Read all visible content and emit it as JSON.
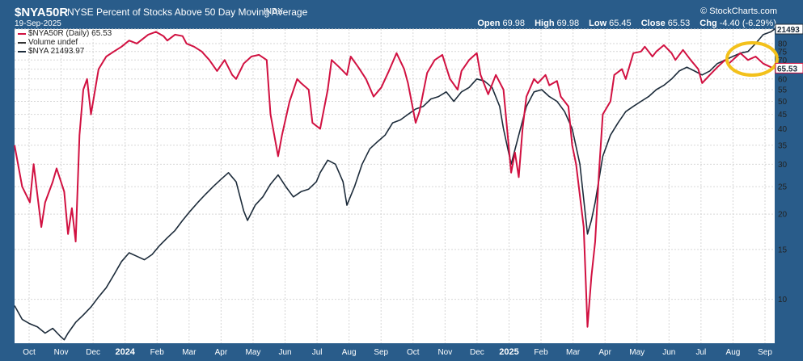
{
  "header": {
    "symbol": "$NYA50R",
    "title": "NYSE Percent of Stocks Above 50 Day Moving Average",
    "exchange": "INDX",
    "date": "19-Sep-2025",
    "brand": "© StockCharts.com",
    "quote": {
      "open_label": "Open",
      "open": "69.98",
      "high_label": "High",
      "high": "69.98",
      "low_label": "Low",
      "low": "65.45",
      "close_label": "Close",
      "close": "65.53",
      "chg_label": "Chg",
      "chg": "-4.40 (-6.29%)"
    }
  },
  "legend": {
    "nya50r": "$NYA50R (Daily) 65.53",
    "volume": "Volume undef",
    "nya": "$NYA 21493.97"
  },
  "colors": {
    "nya50r": "#d11141",
    "nya": "#1c2b3a",
    "frame": "#295c8a",
    "highlight": "#f3c11b"
  },
  "chart_data": {
    "type": "line",
    "scale": "log",
    "ylim": [
      7,
      90
    ],
    "y_ticks": [
      "10",
      "15",
      "20",
      "25",
      "30",
      "35",
      "40",
      "45",
      "50",
      "55",
      "60",
      "65",
      "70",
      "75",
      "80",
      "90"
    ],
    "x_ticks": [
      "Oct",
      "Nov",
      "Dec",
      "2024",
      "Feb",
      "Mar",
      "Apr",
      "May",
      "Jun",
      "Jul",
      "Aug",
      "Sep",
      "Oct",
      "Nov",
      "Dec",
      "2025",
      "Feb",
      "Mar",
      "Apr",
      "May",
      "Jun",
      "Jul",
      "Aug",
      "Sep"
    ],
    "last_value_labels": {
      "nya": "21493",
      "nya50r": "65.53"
    },
    "series": [
      {
        "name": "$NYA50R (Daily)",
        "color": "#d11141",
        "values": [
          [
            0,
            35
          ],
          [
            2,
            25
          ],
          [
            4,
            22
          ],
          [
            5,
            30
          ],
          [
            7,
            18
          ],
          [
            8,
            22
          ],
          [
            10,
            26
          ],
          [
            11,
            29
          ],
          [
            13,
            24
          ],
          [
            14,
            17
          ],
          [
            15,
            21
          ],
          [
            16,
            16
          ],
          [
            17,
            38
          ],
          [
            18,
            55
          ],
          [
            19,
            60
          ],
          [
            20,
            45
          ],
          [
            22,
            65
          ],
          [
            24,
            72
          ],
          [
            26,
            75
          ],
          [
            28,
            78
          ],
          [
            30,
            82
          ],
          [
            32,
            80
          ],
          [
            35,
            86
          ],
          [
            37,
            88
          ],
          [
            39,
            85
          ],
          [
            40,
            82
          ],
          [
            42,
            86
          ],
          [
            44,
            85
          ],
          [
            45,
            80
          ],
          [
            47,
            78
          ],
          [
            49,
            75
          ],
          [
            51,
            70
          ],
          [
            53,
            64
          ],
          [
            55,
            70
          ],
          [
            57,
            62
          ],
          [
            58,
            60
          ],
          [
            60,
            68
          ],
          [
            62,
            72
          ],
          [
            64,
            73
          ],
          [
            66,
            70
          ],
          [
            67,
            45
          ],
          [
            69,
            32
          ],
          [
            70,
            38
          ],
          [
            72,
            50
          ],
          [
            74,
            60
          ],
          [
            75,
            58
          ],
          [
            77,
            55
          ],
          [
            78,
            42
          ],
          [
            80,
            40
          ],
          [
            82,
            55
          ],
          [
            83,
            70
          ],
          [
            85,
            66
          ],
          [
            87,
            62
          ],
          [
            88,
            72
          ],
          [
            90,
            66
          ],
          [
            92,
            60
          ],
          [
            94,
            52
          ],
          [
            96,
            56
          ],
          [
            98,
            64
          ],
          [
            100,
            74
          ],
          [
            102,
            65
          ],
          [
            103,
            58
          ],
          [
            105,
            42
          ],
          [
            106,
            46
          ],
          [
            108,
            63
          ],
          [
            110,
            70
          ],
          [
            112,
            73
          ],
          [
            113,
            66
          ],
          [
            114,
            60
          ],
          [
            116,
            55
          ],
          [
            117,
            64
          ],
          [
            119,
            70
          ],
          [
            121,
            74
          ],
          [
            122,
            62
          ],
          [
            124,
            53
          ],
          [
            126,
            62
          ],
          [
            128,
            55
          ],
          [
            130,
            28
          ],
          [
            131,
            33
          ],
          [
            132,
            27
          ],
          [
            133,
            40
          ],
          [
            134,
            52
          ],
          [
            136,
            60
          ],
          [
            137,
            58
          ],
          [
            139,
            62
          ],
          [
            140,
            57
          ],
          [
            142,
            59
          ],
          [
            143,
            52
          ],
          [
            145,
            48
          ],
          [
            146,
            35
          ],
          [
            147,
            30
          ],
          [
            149,
            18
          ],
          [
            150,
            8
          ],
          [
            151,
            12
          ],
          [
            152,
            16
          ],
          [
            153,
            28
          ],
          [
            154,
            45
          ],
          [
            156,
            50
          ],
          [
            157,
            62
          ],
          [
            159,
            65
          ],
          [
            160,
            60
          ],
          [
            162,
            74
          ],
          [
            164,
            75
          ],
          [
            165,
            78
          ],
          [
            167,
            72
          ],
          [
            168,
            75
          ],
          [
            170,
            79
          ],
          [
            172,
            74
          ],
          [
            173,
            70
          ],
          [
            175,
            76
          ],
          [
            177,
            70
          ],
          [
            179,
            65
          ],
          [
            180,
            58
          ],
          [
            182,
            62
          ],
          [
            184,
            66
          ],
          [
            186,
            70
          ],
          [
            187,
            68
          ],
          [
            189,
            72
          ],
          [
            190,
            74
          ],
          [
            192,
            70
          ],
          [
            194,
            72
          ],
          [
            196,
            68
          ],
          [
            198,
            66
          ],
          [
            199,
            65.5
          ]
        ]
      },
      {
        "name": "$NYA",
        "color": "#1c2b3a",
        "values": [
          [
            0,
            9.5
          ],
          [
            2,
            8.5
          ],
          [
            4,
            8.2
          ],
          [
            6,
            8.0
          ],
          [
            8,
            7.6
          ],
          [
            10,
            7.9
          ],
          [
            12,
            7.4
          ],
          [
            13,
            7.2
          ],
          [
            14,
            7.6
          ],
          [
            16,
            8.3
          ],
          [
            18,
            8.8
          ],
          [
            20,
            9.4
          ],
          [
            22,
            10.2
          ],
          [
            24,
            11.0
          ],
          [
            26,
            12.2
          ],
          [
            28,
            13.6
          ],
          [
            30,
            14.6
          ],
          [
            32,
            14.2
          ],
          [
            34,
            13.8
          ],
          [
            36,
            14.4
          ],
          [
            38,
            15.5
          ],
          [
            40,
            16.5
          ],
          [
            42,
            17.5
          ],
          [
            44,
            19.0
          ],
          [
            46,
            20.5
          ],
          [
            48,
            22.0
          ],
          [
            50,
            23.5
          ],
          [
            52,
            25.0
          ],
          [
            54,
            26.5
          ],
          [
            56,
            28.0
          ],
          [
            58,
            26.0
          ],
          [
            60,
            20.5
          ],
          [
            61,
            19.0
          ],
          [
            63,
            21.5
          ],
          [
            65,
            23.0
          ],
          [
            67,
            25.5
          ],
          [
            69,
            27.5
          ],
          [
            71,
            25.0
          ],
          [
            73,
            23.0
          ],
          [
            75,
            24.0
          ],
          [
            77,
            24.5
          ],
          [
            79,
            26.0
          ],
          [
            80,
            28.0
          ],
          [
            82,
            31.0
          ],
          [
            84,
            30.0
          ],
          [
            86,
            26.0
          ],
          [
            87,
            21.5
          ],
          [
            89,
            25.0
          ],
          [
            91,
            30.0
          ],
          [
            93,
            34.0
          ],
          [
            95,
            36.0
          ],
          [
            97,
            38.0
          ],
          [
            99,
            42.0
          ],
          [
            101,
            43.0
          ],
          [
            103,
            45.0
          ],
          [
            105,
            47.0
          ],
          [
            107,
            48.0
          ],
          [
            109,
            51.0
          ],
          [
            111,
            52.0
          ],
          [
            113,
            54.0
          ],
          [
            115,
            50.0
          ],
          [
            117,
            54.0
          ],
          [
            119,
            56.0
          ],
          [
            121,
            60.0
          ],
          [
            123,
            59.0
          ],
          [
            125,
            56.0
          ],
          [
            127,
            48.0
          ],
          [
            128,
            40.0
          ],
          [
            130,
            30.0
          ],
          [
            132,
            38.0
          ],
          [
            134,
            48.0
          ],
          [
            136,
            54.0
          ],
          [
            138,
            55.0
          ],
          [
            140,
            52.0
          ],
          [
            142,
            50.0
          ],
          [
            144,
            46.0
          ],
          [
            146,
            40.0
          ],
          [
            148,
            30.0
          ],
          [
            150,
            17.0
          ],
          [
            151,
            19.0
          ],
          [
            152,
            22.0
          ],
          [
            154,
            32.0
          ],
          [
            156,
            38.0
          ],
          [
            158,
            42.0
          ],
          [
            160,
            46.0
          ],
          [
            162,
            48.0
          ],
          [
            164,
            50.0
          ],
          [
            166,
            52.0
          ],
          [
            168,
            55.0
          ],
          [
            170,
            57.0
          ],
          [
            172,
            60.0
          ],
          [
            174,
            64.0
          ],
          [
            176,
            66.0
          ],
          [
            178,
            64.0
          ],
          [
            180,
            62.0
          ],
          [
            182,
            64.0
          ],
          [
            184,
            68.0
          ],
          [
            186,
            70.0
          ],
          [
            188,
            72.0
          ],
          [
            190,
            74.0
          ],
          [
            192,
            75.0
          ],
          [
            194,
            80.0
          ],
          [
            196,
            86.0
          ],
          [
            198,
            88.0
          ],
          [
            199,
            90.0
          ]
        ]
      }
    ]
  }
}
